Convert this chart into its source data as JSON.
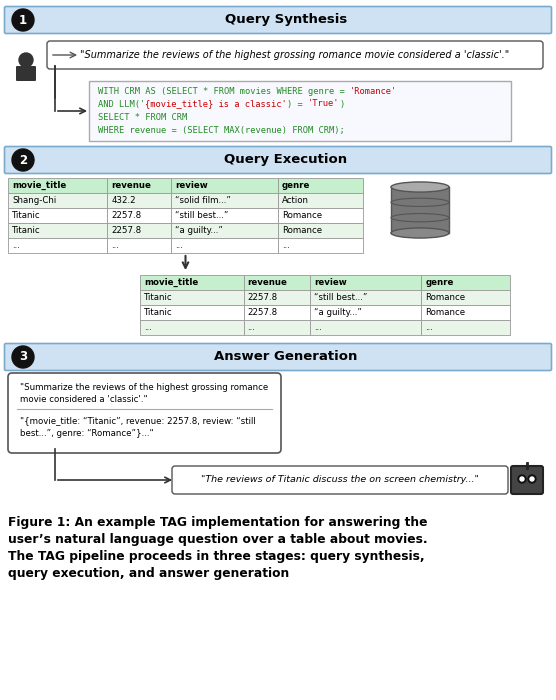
{
  "title_bg_color": "#cfe2f3",
  "section_border_color": "#7aabcc",
  "table_header_color": "#c6efce",
  "table_row_alt_color": "#eaf5ea",
  "sql_box_bg": "#f0f0ff",
  "sql_box_border": "#aaaaaa",
  "bg_color": "#ffffff",
  "section1_title": "Query Synthesis",
  "section2_title": "Query Execution",
  "section3_title": "Answer Generation",
  "nl_query": "\"Summarize the reviews of the highest grossing romance movie considered a 'classic'.\"",
  "sql_line1_parts": [
    [
      "WITH CRM AS (SELECT * FROM movies WHERE genre = ",
      "#228B22"
    ],
    [
      "'Romance'",
      "#cc0000"
    ]
  ],
  "sql_line2_parts": [
    [
      "AND LLM('",
      "#228B22"
    ],
    [
      "{movie_title} is a classic'",
      "#cc0000"
    ],
    [
      ") = ",
      "#228B22"
    ],
    [
      "'True'",
      "#cc0000"
    ],
    [
      ")",
      "#228B22"
    ]
  ],
  "sql_line3_parts": [
    [
      "SELECT * FROM CRM",
      "#228B22"
    ]
  ],
  "sql_line4_parts": [
    [
      "WHERE revenue = (SELECT MAX(revenue) FROM CRM);",
      "#228B22"
    ]
  ],
  "table1_headers": [
    "movie_title",
    "revenue",
    "review",
    "genre"
  ],
  "table1_rows": [
    [
      "Shang-Chi",
      "432.2",
      "“solid film...”",
      "Action"
    ],
    [
      "Titanic",
      "2257.8",
      "“still best...”",
      "Romance"
    ],
    [
      "Titanic",
      "2257.8",
      "“a guilty...”",
      "Romance"
    ],
    [
      "...",
      "...",
      "...",
      "..."
    ]
  ],
  "table2_headers": [
    "movie_title",
    "revenue",
    "review",
    "genre"
  ],
  "table2_rows": [
    [
      "Titanic",
      "2257.8",
      "“still best...”",
      "Romance"
    ],
    [
      "Titanic",
      "2257.8",
      "“a guilty...”",
      "Romance"
    ],
    [
      "...",
      "...",
      "...",
      "..."
    ]
  ],
  "llm_line1": "\"Summarize the reviews of the highest grossing romance",
  "llm_line2": "movie considered a 'classic'.\"",
  "llm_line3": "\"{movie_title: “Titanic”, revenue: 2257.8, review: “still",
  "llm_line4": "best...”, genre: “Romance”}...\"",
  "output_text": "\"The reviews of Titanic discuss the on screen chemistry...\"",
  "figure_caption_bold": "Figure 1: An example TAG implementation for answering the\nuser’s natural language question over a table about movies.\nThe TAG pipeline proceeds in three stages: query synthesis,\nquery execution, and answer generation"
}
